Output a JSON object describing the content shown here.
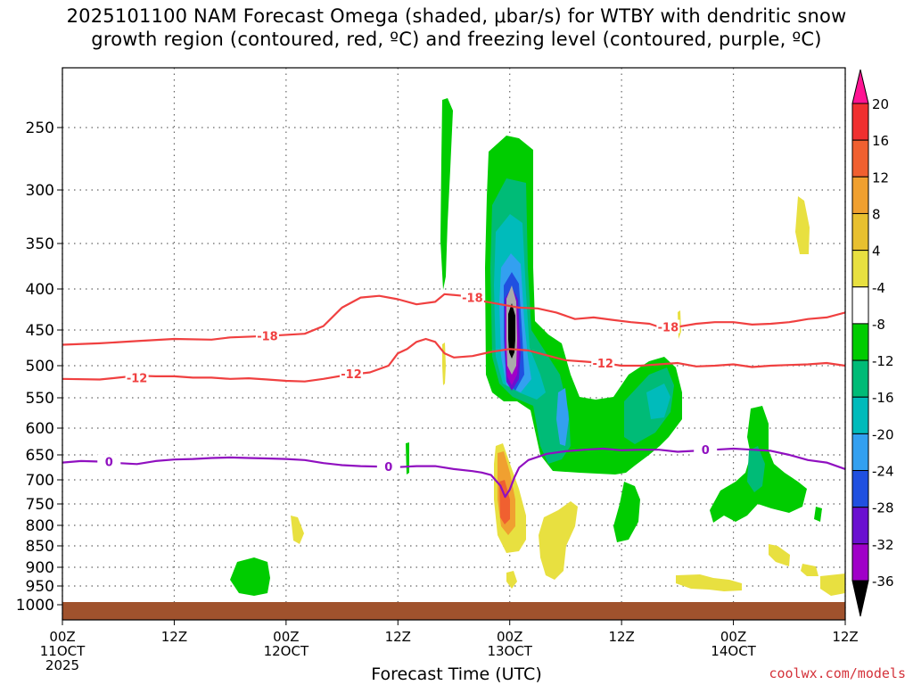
{
  "chart_data": {
    "type": "heatmap",
    "title_lines": [
      "2025101100 NAM Forecast Omega (shaded, μbar/s) for WTBY with dendritic snow",
      "growth region (contoured, red, ºC) and freezing level (contoured, purple, ºC)"
    ],
    "xlabel": "Forecast Time (UTC)",
    "credit": "coolwx.com/models",
    "x_range_hours": [
      0,
      84
    ],
    "x_ticks": [
      {
        "h": 0,
        "lines": [
          "00Z",
          "11OCT",
          "2025"
        ]
      },
      {
        "h": 12,
        "lines": [
          "12Z"
        ]
      },
      {
        "h": 24,
        "lines": [
          "00Z",
          "12OCT"
        ]
      },
      {
        "h": 36,
        "lines": [
          "12Z"
        ]
      },
      {
        "h": 48,
        "lines": [
          "00Z",
          "13OCT"
        ]
      },
      {
        "h": 60,
        "lines": [
          "12Z"
        ]
      },
      {
        "h": 72,
        "lines": [
          "00Z",
          "14OCT"
        ]
      },
      {
        "h": 84,
        "lines": [
          "12Z"
        ]
      }
    ],
    "y_range_hpa": [
      1050,
      200
    ],
    "y_ticks": [
      250,
      300,
      350,
      400,
      450,
      500,
      550,
      600,
      650,
      700,
      750,
      800,
      850,
      900,
      950,
      1000
    ],
    "colorbar": {
      "labels": [
        20,
        16,
        12,
        8,
        4,
        -4,
        -8,
        -12,
        -16,
        -20,
        -24,
        -28,
        -32,
        -36
      ],
      "colors": [
        "#ff1493",
        "#f03030",
        "#f06030",
        "#f0a030",
        "#e8c030",
        "#e8e040",
        "#ffffff",
        "#00cc00",
        "#00bb77",
        "#00bbbb",
        "#33a0f0",
        "#2050e0",
        "#6a10d0",
        "#a000c8",
        "#aaaaaa",
        "#000000"
      ]
    },
    "contours": [
      {
        "name": "-18 °C",
        "color": "#f04040",
        "points": [
          [
            0,
            470
          ],
          [
            4,
            468
          ],
          [
            8,
            465
          ],
          [
            12,
            462
          ],
          [
            16,
            463
          ],
          [
            18,
            460
          ],
          [
            22,
            458
          ],
          [
            26,
            455
          ],
          [
            28,
            445
          ],
          [
            30,
            422
          ],
          [
            32,
            410
          ],
          [
            34,
            408
          ],
          [
            36,
            412
          ],
          [
            38,
            418
          ],
          [
            40,
            415
          ],
          [
            41,
            406
          ],
          [
            43,
            408
          ],
          [
            45,
            414
          ],
          [
            47,
            418
          ],
          [
            49,
            422
          ],
          [
            51,
            423
          ],
          [
            53,
            428
          ],
          [
            55,
            436
          ],
          [
            57,
            434
          ],
          [
            59,
            437
          ],
          [
            61,
            440
          ],
          [
            63,
            442
          ],
          [
            64,
            446
          ],
          [
            66,
            446
          ],
          [
            68,
            442
          ],
          [
            70,
            440
          ],
          [
            72,
            440
          ],
          [
            74,
            443
          ],
          [
            76,
            442
          ],
          [
            78,
            440
          ],
          [
            80,
            436
          ],
          [
            82,
            434
          ],
          [
            84,
            428
          ]
        ],
        "labels": [
          {
            "h": 22,
            "p": 458,
            "text": "-18"
          },
          {
            "h": 44,
            "p": 410,
            "text": "-18"
          },
          {
            "h": 65,
            "p": 446,
            "text": "-18"
          }
        ]
      },
      {
        "name": "-12 °C",
        "color": "#f04040",
        "points": [
          [
            0,
            520
          ],
          [
            4,
            521
          ],
          [
            6,
            518
          ],
          [
            8,
            515
          ],
          [
            10,
            516
          ],
          [
            12,
            516
          ],
          [
            14,
            518
          ],
          [
            16,
            518
          ],
          [
            18,
            520
          ],
          [
            20,
            519
          ],
          [
            22,
            521
          ],
          [
            24,
            523
          ],
          [
            26,
            524
          ],
          [
            28,
            520
          ],
          [
            30,
            515
          ],
          [
            33,
            510
          ],
          [
            35,
            500
          ],
          [
            36,
            482
          ],
          [
            37,
            476
          ],
          [
            38,
            466
          ],
          [
            39,
            462
          ],
          [
            40,
            466
          ],
          [
            41,
            482
          ],
          [
            42,
            488
          ],
          [
            44,
            486
          ],
          [
            46,
            480
          ],
          [
            48,
            476
          ],
          [
            50,
            478
          ],
          [
            52,
            485
          ],
          [
            54,
            492
          ],
          [
            56,
            494
          ],
          [
            58,
            496
          ],
          [
            60,
            500
          ],
          [
            62,
            500
          ],
          [
            64,
            498
          ],
          [
            66,
            496
          ],
          [
            68,
            501
          ],
          [
            70,
            500
          ],
          [
            72,
            498
          ],
          [
            74,
            502
          ],
          [
            76,
            500
          ],
          [
            78,
            499
          ],
          [
            80,
            498
          ],
          [
            82,
            496
          ],
          [
            84,
            500
          ]
        ],
        "labels": [
          {
            "h": 8,
            "p": 518,
            "text": "-12"
          },
          {
            "h": 31,
            "p": 512,
            "text": "-12"
          },
          {
            "h": 58,
            "p": 496,
            "text": "-12"
          }
        ]
      },
      {
        "name": "0 °C freezing level",
        "color": "#9010c0",
        "points": [
          [
            0,
            665
          ],
          [
            2,
            662
          ],
          [
            4,
            663
          ],
          [
            6,
            666
          ],
          [
            8,
            668
          ],
          [
            10,
            662
          ],
          [
            12,
            659
          ],
          [
            14,
            658
          ],
          [
            16,
            656
          ],
          [
            18,
            655
          ],
          [
            20,
            656
          ],
          [
            22,
            657
          ],
          [
            24,
            658
          ],
          [
            26,
            660
          ],
          [
            28,
            666
          ],
          [
            30,
            670
          ],
          [
            32,
            672
          ],
          [
            34,
            673
          ],
          [
            36,
            674
          ],
          [
            38,
            672
          ],
          [
            40,
            672
          ],
          [
            42,
            678
          ],
          [
            44,
            682
          ],
          [
            45,
            685
          ],
          [
            46,
            690
          ],
          [
            47,
            712
          ],
          [
            47.5,
            735
          ],
          [
            48,
            720
          ],
          [
            48.5,
            695
          ],
          [
            49,
            675
          ],
          [
            50,
            660
          ],
          [
            52,
            648
          ],
          [
            54,
            643
          ],
          [
            56,
            640
          ],
          [
            58,
            638
          ],
          [
            60,
            641
          ],
          [
            62,
            640
          ],
          [
            64,
            640
          ],
          [
            66,
            644
          ],
          [
            68,
            642
          ],
          [
            70,
            640
          ],
          [
            72,
            638
          ],
          [
            74,
            640
          ],
          [
            76,
            642
          ],
          [
            78,
            650
          ],
          [
            80,
            660
          ],
          [
            82,
            665
          ],
          [
            84,
            678
          ]
        ],
        "labels": [
          {
            "h": 5,
            "p": 663,
            "text": "0"
          },
          {
            "h": 35,
            "p": 673,
            "text": "0"
          },
          {
            "h": 69,
            "p": 640,
            "text": "0"
          }
        ]
      }
    ],
    "terrain_color": "#a0522d"
  }
}
